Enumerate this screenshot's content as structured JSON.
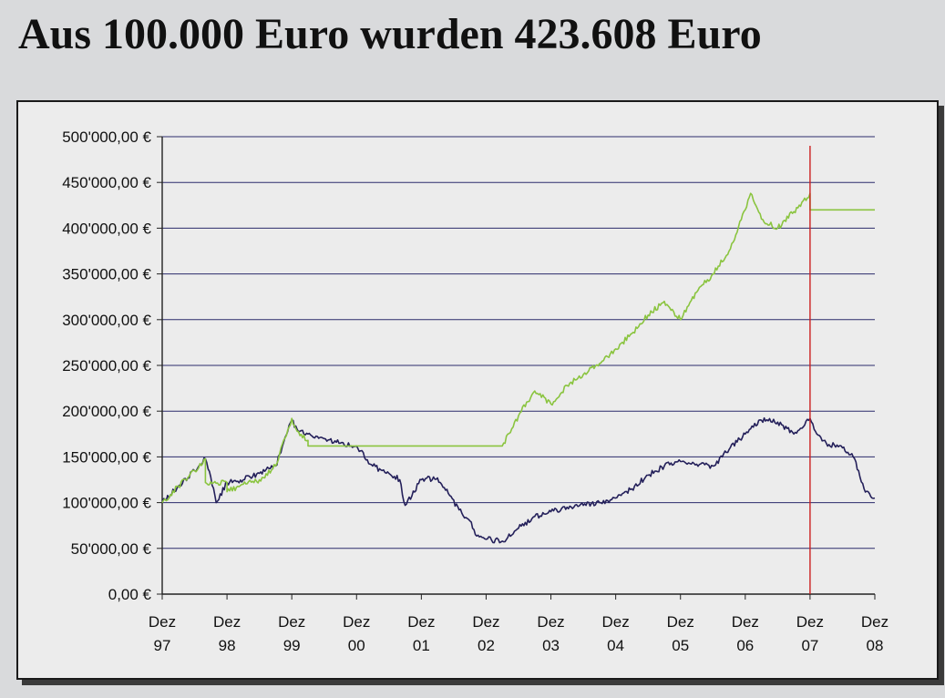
{
  "headline": "Aus 100.000 Euro wurden 423.608 Euro",
  "chart_data": {
    "type": "line",
    "title": "Aus 100.000 Euro wurden 423.608 Euro",
    "xlabel": "",
    "ylabel": "",
    "ylim": [
      0,
      500000
    ],
    "grid": true,
    "legend": "none",
    "y_ticks": [
      "0,00 €",
      "50'000,00 €",
      "100'000,00 €",
      "150'000,00 €",
      "200'000,00 €",
      "250'000,00 €",
      "300'000,00 €",
      "350'000,00 €",
      "400'000,00 €",
      "450'000,00 €",
      "500'000,00 €"
    ],
    "y_tick_values": [
      0,
      50000,
      100000,
      150000,
      200000,
      250000,
      300000,
      350000,
      400000,
      450000,
      500000
    ],
    "x_ticks": [
      {
        "month": "Dez",
        "year": "97"
      },
      {
        "month": "Dez",
        "year": "98"
      },
      {
        "month": "Dez",
        "year": "99"
      },
      {
        "month": "Dez",
        "year": "00"
      },
      {
        "month": "Dez",
        "year": "01"
      },
      {
        "month": "Dez",
        "year": "02"
      },
      {
        "month": "Dez",
        "year": "03"
      },
      {
        "month": "Dez",
        "year": "04"
      },
      {
        "month": "Dez",
        "year": "05"
      },
      {
        "month": "Dez",
        "year": "06"
      },
      {
        "month": "Dez",
        "year": "07"
      },
      {
        "month": "Dez",
        "year": "08"
      }
    ],
    "marker_line": {
      "x": "2007-12",
      "color": "#cc1f1f"
    },
    "series": [
      {
        "color": "#24205a",
        "x": [
          "1997-12",
          "1998-03",
          "1998-06",
          "1998-08",
          "1998-09",
          "1998-10",
          "1998-12",
          "1999-03",
          "1999-06",
          "1999-09",
          "1999-12",
          "2000-01",
          "2000-03",
          "2000-06",
          "2000-09",
          "2000-12",
          "2001-03",
          "2001-06",
          "2001-08",
          "2001-09",
          "2001-12",
          "2002-03",
          "2002-05",
          "2002-07",
          "2002-09",
          "2002-10",
          "2002-12",
          "2003-03",
          "2003-06",
          "2003-09",
          "2003-12",
          "2004-03",
          "2004-06",
          "2004-09",
          "2004-12",
          "2005-03",
          "2005-06",
          "2005-09",
          "2005-12",
          "2006-03",
          "2006-06",
          "2006-09",
          "2006-12",
          "2007-03",
          "2007-06",
          "2007-09",
          "2007-12",
          "2008-01",
          "2008-03",
          "2008-06",
          "2008-08",
          "2008-09",
          "2008-10",
          "2008-11",
          "2008-12"
        ],
        "values": [
          100000,
          118000,
          135000,
          148000,
          128000,
          100000,
          122000,
          125000,
          132000,
          140000,
          190000,
          180000,
          175000,
          170000,
          165000,
          162000,
          140000,
          132000,
          125000,
          97000,
          125000,
          127000,
          110000,
          92000,
          80000,
          65000,
          60000,
          58000,
          72000,
          85000,
          90000,
          95000,
          97000,
          100000,
          105000,
          115000,
          130000,
          140000,
          145000,
          142000,
          140000,
          158000,
          175000,
          190000,
          188000,
          175000,
          192000,
          178000,
          165000,
          160000,
          150000,
          135000,
          115000,
          110000,
          105000
        ]
      },
      {
        "color": "#8ac43f",
        "x": [
          "1997-12",
          "1998-03",
          "1998-06",
          "1998-08",
          "1998-08",
          "1998-12",
          "1998-12",
          "1999-03",
          "1999-06",
          "1999-09",
          "1999-12",
          "2000-01",
          "2000-03",
          "2000-03",
          "2003-03",
          "2003-06",
          "2003-09",
          "2003-12",
          "2004-03",
          "2004-06",
          "2004-09",
          "2004-12",
          "2005-03",
          "2005-06",
          "2005-09",
          "2005-12",
          "2006-03",
          "2006-06",
          "2006-09",
          "2006-12",
          "2007-01",
          "2007-03",
          "2007-06",
          "2007-09",
          "2007-12",
          "2007-12",
          "2008-12"
        ],
        "values": [
          100000,
          118000,
          135000,
          148000,
          122000,
          122000,
          112000,
          120000,
          125000,
          140000,
          192000,
          178000,
          168000,
          162000,
          162000,
          195000,
          222000,
          208000,
          228000,
          240000,
          252000,
          268000,
          285000,
          305000,
          320000,
          300000,
          330000,
          350000,
          375000,
          420000,
          438000,
          410000,
          400000,
          418000,
          438000,
          420000,
          420000
        ]
      }
    ]
  }
}
